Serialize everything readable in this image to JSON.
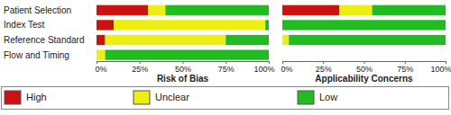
{
  "chart_data": [
    {
      "type": "bar",
      "orientation": "horizontal",
      "stacked": true,
      "x_label": "Risk of Bias",
      "categories": [
        "Patient Selection",
        "Index Test",
        "Reference Standard",
        "Flow and Timing"
      ],
      "series": [
        {
          "name": "High",
          "color": "#cc1111",
          "values": [
            30,
            10,
            5,
            0
          ]
        },
        {
          "name": "Unclear",
          "color": "#eeee11",
          "values": [
            10,
            88,
            70,
            5
          ]
        },
        {
          "name": "Low",
          "color": "#22bb22",
          "values": [
            60,
            2,
            25,
            95
          ]
        }
      ],
      "xlim": [
        0,
        100
      ],
      "xticks": [
        {
          "value": 0,
          "label": "0%"
        },
        {
          "value": 25,
          "label": "25%"
        },
        {
          "value": 50,
          "label": "50%"
        },
        {
          "value": 75,
          "label": "75%"
        },
        {
          "value": 100,
          "label": "100%"
        }
      ],
      "legend": "bottom"
    },
    {
      "type": "bar",
      "orientation": "horizontal",
      "stacked": true,
      "x_label": "Applicability Concerns",
      "categories": [
        null,
        null,
        null
      ],
      "series": [
        {
          "color": "#cc1111",
          "values": [
            35,
            0,
            0
          ]
        },
        {
          "color": "#eeee11",
          "values": [
            20,
            0,
            4
          ]
        },
        {
          "color": "#22bb22",
          "values": [
            45,
            100,
            96
          ]
        }
      ],
      "xlim": [
        0,
        100
      ],
      "xticks": [
        {
          "value": 0,
          "label": "0%"
        },
        {
          "value": 25,
          "label": "25%"
        },
        {
          "value": 50,
          "label": "50%"
        },
        {
          "value": 75,
          "label": "75%"
        },
        {
          "value": 100,
          "label": "100%"
        }
      ],
      "tick_labels": "x"
    }
  ]
}
